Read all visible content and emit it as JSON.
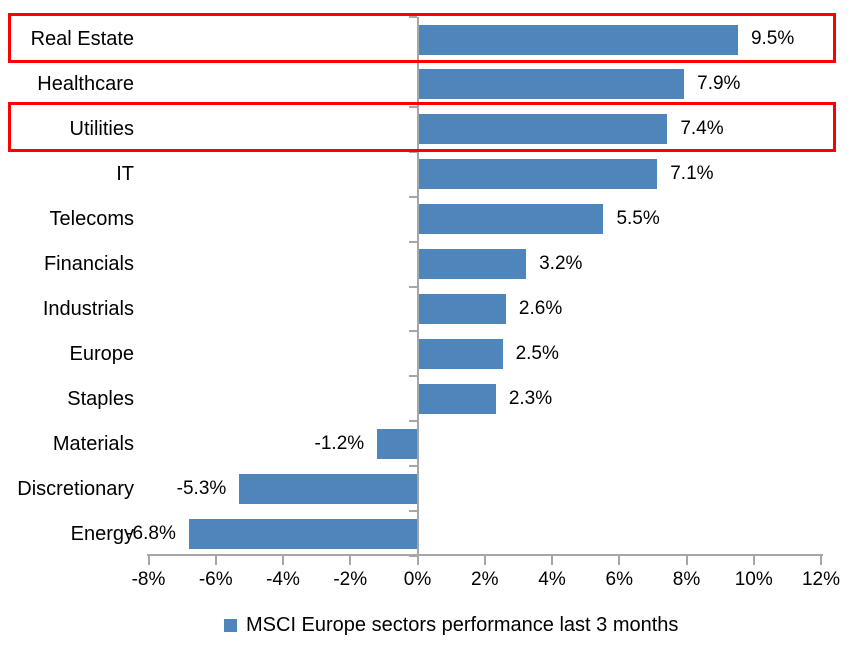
{
  "chart_data": {
    "type": "bar",
    "orientation": "horizontal",
    "legend": "MSCI Europe sectors performance last 3 months",
    "legend_position": "bottom",
    "categories": [
      "Real Estate",
      "Healthcare",
      "Utilities",
      "IT",
      "Telecoms",
      "Financials",
      "Industrials",
      "Europe",
      "Staples",
      "Materials",
      "Discretionary",
      "Energy"
    ],
    "values": [
      9.5,
      7.9,
      7.4,
      7.1,
      5.5,
      3.2,
      2.6,
      2.5,
      2.3,
      -1.2,
      -5.3,
      -6.8
    ],
    "value_labels": [
      "9.5%",
      "7.9%",
      "7.4%",
      "7.1%",
      "5.5%",
      "3.2%",
      "2.6%",
      "2.5%",
      "2.3%",
      "-1.2%",
      "-5.3%",
      "-6.8%"
    ],
    "x_ticks": [
      "-8%",
      "-6%",
      "-4%",
      "-2%",
      "0%",
      "2%",
      "4%",
      "6%",
      "8%",
      "10%",
      "12%"
    ],
    "xlim": [
      -8,
      12
    ],
    "grid": false,
    "bar_color": "#4E86BC",
    "axis_color": "#A6A6A6",
    "highlight_color": "#FF0000",
    "highlighted_categories": [
      "Real Estate",
      "Utilities"
    ]
  }
}
